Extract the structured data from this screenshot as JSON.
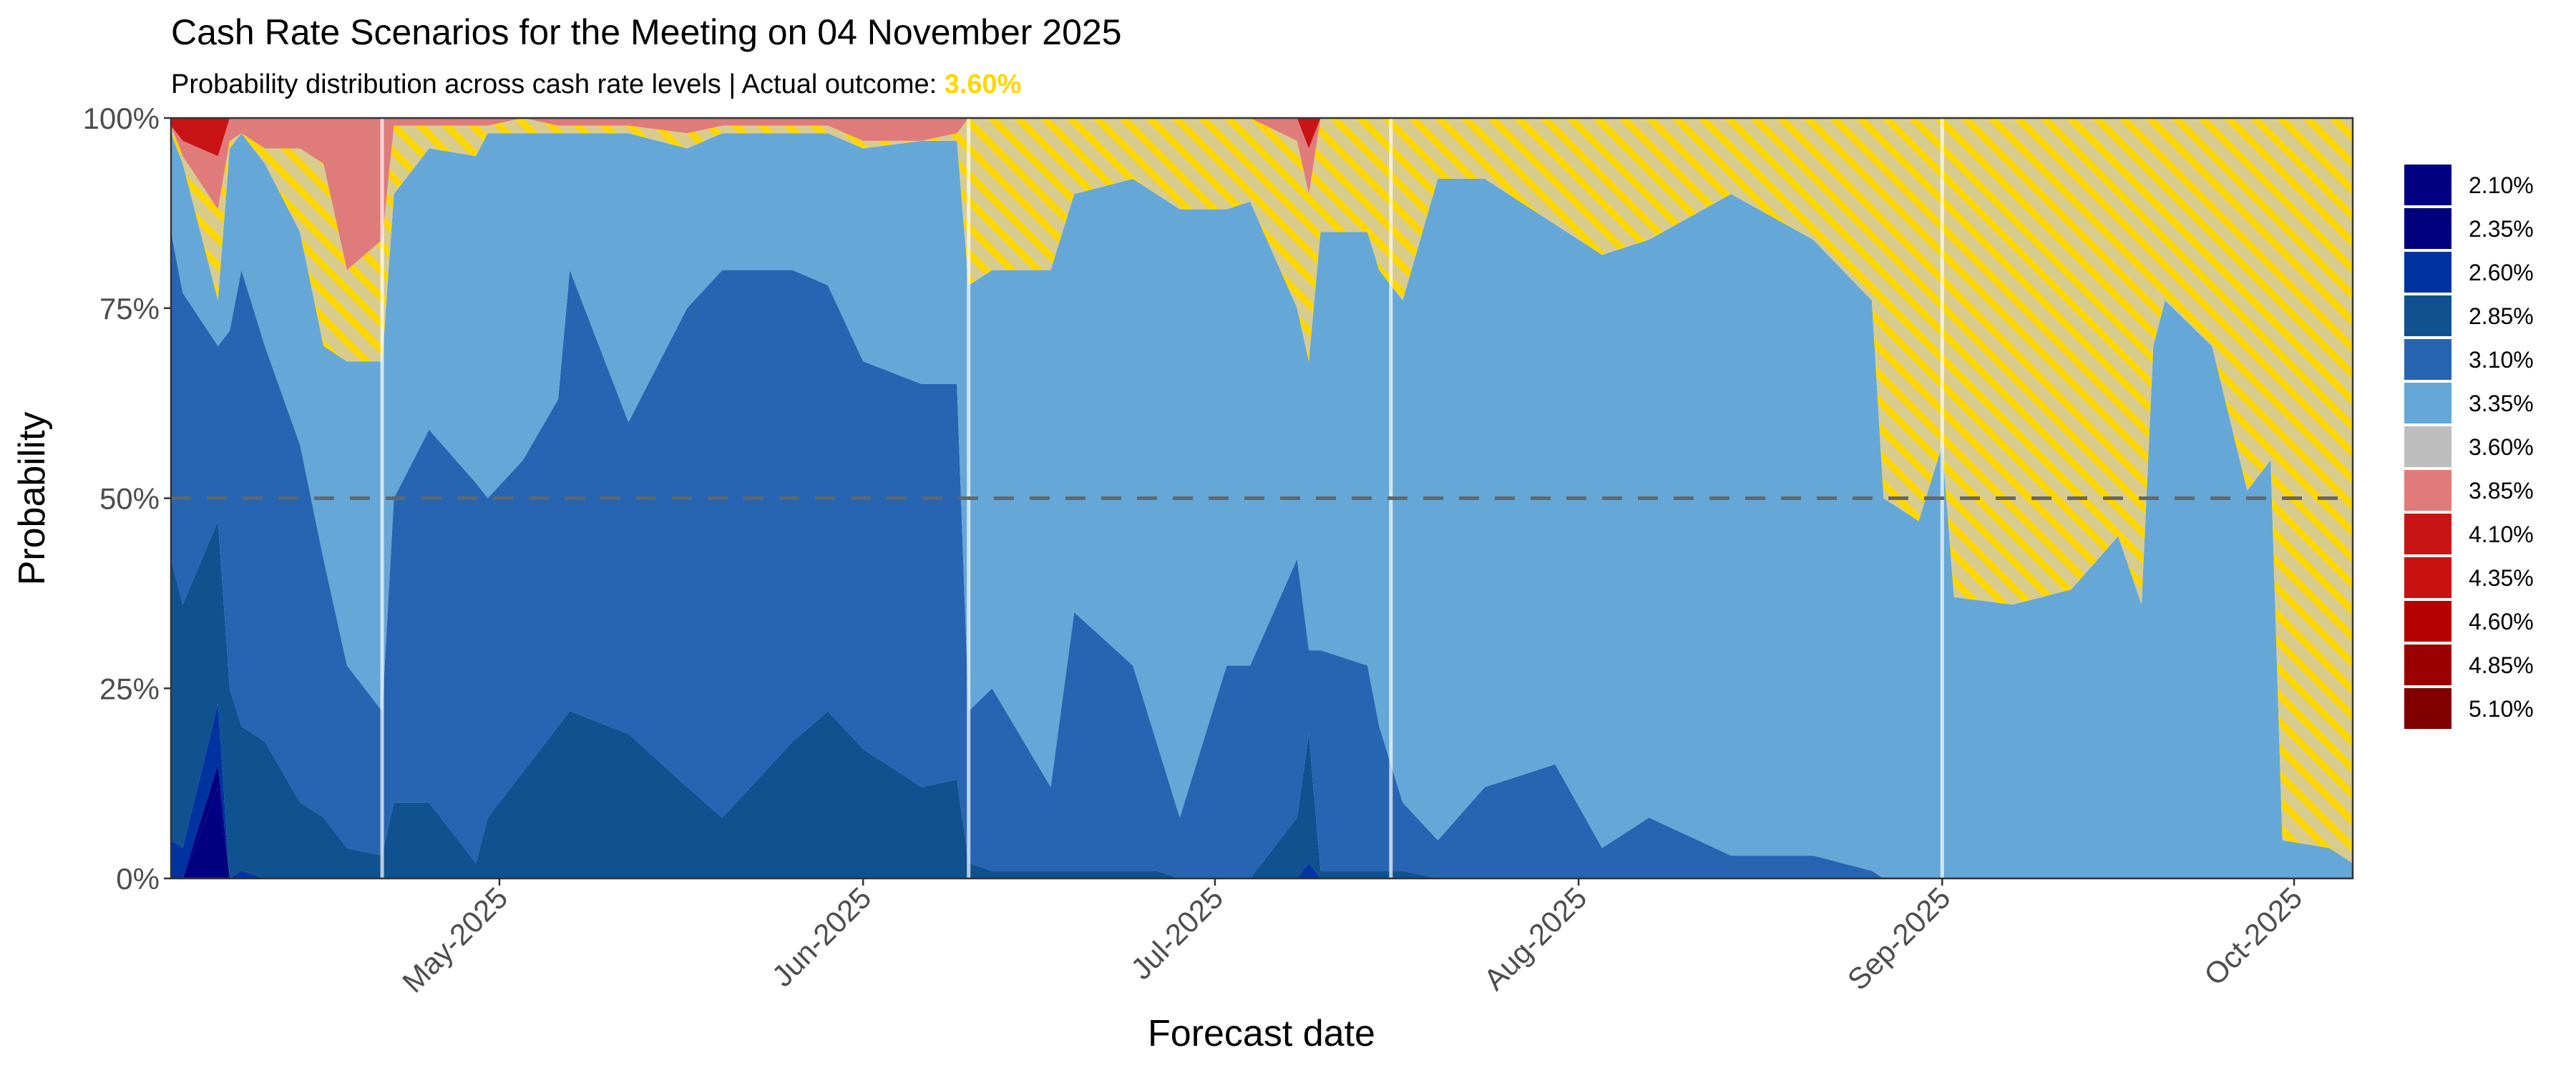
{
  "chart_data": {
    "type": "area",
    "stacked": true,
    "title": "Cash Rate Scenarios for the Meeting on 04 November 2025",
    "subtitle_prefix": "Probability distribution across cash rate levels | Actual outcome: ",
    "subtitle_highlight": "3.60%",
    "highlight_color": "#FFD700",
    "xlabel": "Forecast date",
    "ylabel": "Probability",
    "xlim": [
      "2025-04-03",
      "2025-10-06"
    ],
    "ylim": [
      0,
      100
    ],
    "y_ticks": [
      0,
      25,
      50,
      75,
      100
    ],
    "y_tick_labels": [
      "0%",
      "25%",
      "50%",
      "75%",
      "100%"
    ],
    "x_ticks": [
      "2025-05-01",
      "2025-06-01",
      "2025-07-01",
      "2025-08-01",
      "2025-09-01",
      "2025-10-01"
    ],
    "x_tick_labels": [
      "May-2025",
      "Jun-2025",
      "Jul-2025",
      "Aug-2025",
      "Sep-2025",
      "Oct-2025"
    ],
    "reference_line": {
      "y": 50,
      "style": "dashed",
      "color": "#666666"
    },
    "vertical_markers": [
      "2025-04-21",
      "2025-06-10",
      "2025-07-16",
      "2025-09-01"
    ],
    "legend_position": "right",
    "grid": false,
    "actual_outcome_series": "3.60%",
    "dates": [
      "2025-04-03",
      "2025-04-04",
      "2025-04-07",
      "2025-04-08",
      "2025-04-09",
      "2025-04-11",
      "2025-04-14",
      "2025-04-16",
      "2025-04-18",
      "2025-04-21",
      "2025-04-22",
      "2025-04-25",
      "2025-04-29",
      "2025-04-30",
      "2025-05-03",
      "2025-05-06",
      "2025-05-07",
      "2025-05-12",
      "2025-05-17",
      "2025-05-20",
      "2025-05-26",
      "2025-05-29",
      "2025-06-01",
      "2025-06-06",
      "2025-06-09",
      "2025-06-10",
      "2025-06-12",
      "2025-06-17",
      "2025-06-19",
      "2025-06-24",
      "2025-06-26",
      "2025-06-28",
      "2025-07-02",
      "2025-07-04",
      "2025-07-08",
      "2025-07-09",
      "2025-07-10",
      "2025-07-14",
      "2025-07-15",
      "2025-07-17",
      "2025-07-20",
      "2025-07-24",
      "2025-07-30",
      "2025-08-03",
      "2025-08-07",
      "2025-08-14",
      "2025-08-21",
      "2025-08-26",
      "2025-08-27",
      "2025-08-30",
      "2025-09-01",
      "2025-09-02",
      "2025-09-07",
      "2025-09-12",
      "2025-09-16",
      "2025-09-18",
      "2025-09-19",
      "2025-09-20",
      "2025-09-24",
      "2025-09-27",
      "2025-09-29",
      "2025-09-30",
      "2025-10-04",
      "2025-10-06"
    ],
    "series": [
      {
        "name": "2.10%",
        "color": "#000080",
        "values": [
          0,
          0,
          12,
          0,
          0,
          0,
          0,
          0,
          0,
          0,
          0,
          0,
          0,
          0,
          0,
          0,
          0,
          0,
          0,
          0,
          0,
          0,
          0,
          0,
          0,
          0,
          0,
          0,
          0,
          0,
          0,
          0,
          0,
          0,
          0,
          0,
          0,
          0,
          0,
          0,
          0,
          0,
          0,
          0,
          0,
          0,
          0,
          0,
          0,
          0,
          0,
          0,
          0,
          0,
          0,
          0,
          0,
          0,
          0,
          0,
          0,
          0,
          0,
          0
        ]
      },
      {
        "name": "2.35%",
        "color": "#00007F",
        "values": [
          0,
          0,
          3,
          0,
          0,
          0,
          0,
          0,
          0,
          0,
          0,
          0,
          0,
          0,
          0,
          0,
          0,
          0,
          0,
          0,
          0,
          0,
          0,
          0,
          0,
          0,
          0,
          0,
          0,
          0,
          0,
          0,
          0,
          0,
          0,
          0,
          0,
          0,
          0,
          0,
          0,
          0,
          0,
          0,
          0,
          0,
          0,
          0,
          0,
          0,
          0,
          0,
          0,
          0,
          0,
          0,
          0,
          0,
          0,
          0,
          0,
          0,
          0,
          0
        ]
      },
      {
        "name": "2.60%",
        "color": "#0033A0",
        "values": [
          5,
          4,
          8,
          0,
          1,
          0,
          0,
          0,
          0,
          0,
          0,
          0,
          0,
          0,
          0,
          0,
          0,
          0,
          0,
          0,
          0,
          0,
          0,
          0,
          0,
          0,
          0,
          0,
          0,
          0,
          0,
          0,
          0,
          0,
          0,
          2,
          0,
          0,
          0,
          0,
          0,
          0,
          0,
          0,
          0,
          0,
          0,
          0,
          0,
          0,
          0,
          0,
          0,
          0,
          0,
          0,
          0,
          0,
          0,
          0,
          0,
          0,
          0,
          0
        ]
      },
      {
        "name": "2.85%",
        "color": "#0F528F",
        "values": [
          37,
          32,
          24,
          25,
          19,
          18,
          10,
          8,
          4,
          3,
          10,
          10,
          2,
          8,
          14,
          20,
          22,
          19,
          12,
          8,
          18,
          22,
          17,
          12,
          13,
          2,
          1,
          1,
          1,
          1,
          1,
          0,
          0,
          0,
          8,
          17,
          1,
          1,
          1,
          1,
          0,
          0,
          0,
          0,
          0,
          0,
          0,
          0,
          0,
          0,
          0,
          0,
          0,
          0,
          0,
          0,
          0,
          0,
          0,
          0,
          0,
          0,
          0,
          0
        ]
      },
      {
        "name": "3.10%",
        "color": "#2765B2",
        "values": [
          43,
          41,
          23,
          47,
          60,
          52,
          47,
          34,
          24,
          19,
          40,
          49,
          50,
          42,
          41,
          43,
          58,
          41,
          63,
          72,
          62,
          56,
          51,
          53,
          52,
          20,
          24,
          11,
          34,
          27,
          17,
          8,
          28,
          28,
          34,
          11,
          29,
          27,
          19,
          9,
          5,
          12,
          15,
          4,
          8,
          3,
          3,
          1,
          0,
          0,
          0,
          0,
          0,
          0,
          0,
          0,
          0,
          0,
          0,
          0,
          0,
          0,
          0,
          0
        ]
      },
      {
        "name": "3.35%",
        "color": "#65A7D6",
        "values": [
          13,
          17,
          6,
          24,
          18,
          24,
          28,
          28,
          40,
          46,
          40,
          37,
          43,
          48,
          43,
          35,
          18,
          38,
          21,
          18,
          18,
          20,
          28,
          32,
          32,
          56,
          55,
          68,
          55,
          64,
          72,
          80,
          60,
          61,
          33,
          38,
          55,
          57,
          60,
          66,
          87,
          80,
          71,
          78,
          76,
          87,
          81,
          75,
          50,
          47,
          57,
          37,
          36,
          38,
          45,
          36,
          70,
          76,
          70,
          51,
          55,
          5,
          4,
          2
        ]
      },
      {
        "name": "3.60%",
        "color": "#BEBEBE",
        "values": [
          1,
          1,
          12,
          1,
          0,
          2,
          11,
          24,
          12,
          16,
          9,
          3,
          4,
          1,
          2,
          1,
          1,
          1,
          2,
          1,
          1,
          1,
          1,
          0,
          1,
          22,
          20,
          20,
          10,
          8,
          10,
          12,
          12,
          11,
          22,
          22,
          15,
          15,
          20,
          24,
          8,
          8,
          14,
          18,
          16,
          10,
          16,
          24,
          50,
          53,
          43,
          63,
          64,
          62,
          55,
          64,
          30,
          24,
          30,
          49,
          45,
          95,
          96,
          98
        ]
      },
      {
        "name": "3.85%",
        "color": "#E07B7B",
        "values": [
          0,
          2,
          7,
          3,
          2,
          4,
          4,
          6,
          20,
          16,
          1,
          1,
          1,
          1,
          0,
          1,
          1,
          1,
          2,
          1,
          1,
          1,
          3,
          3,
          2,
          0,
          0,
          0,
          0,
          0,
          0,
          0,
          0,
          0,
          3,
          6,
          0,
          0,
          0,
          0,
          0,
          0,
          0,
          0,
          0,
          0,
          0,
          0,
          0,
          0,
          0,
          0,
          0,
          0,
          0,
          0,
          0,
          0,
          0,
          0,
          0,
          0,
          0,
          0
        ]
      },
      {
        "name": "4.10%",
        "color": "#C81414",
        "values": [
          1,
          3,
          5,
          0,
          0,
          0,
          0,
          0,
          0,
          0,
          0,
          0,
          0,
          0,
          0,
          0,
          0,
          0,
          0,
          0,
          0,
          0,
          0,
          0,
          0,
          0,
          0,
          0,
          0,
          0,
          0,
          0,
          0,
          0,
          0,
          4,
          0,
          0,
          0,
          0,
          0,
          0,
          0,
          0,
          0,
          0,
          0,
          0,
          0,
          0,
          0,
          0,
          0,
          0,
          0,
          0,
          0,
          0,
          0,
          0,
          0,
          0,
          0,
          0
        ]
      },
      {
        "name": "4.35%",
        "color": "#C81212",
        "values": [
          0,
          0,
          0,
          0,
          0,
          0,
          0,
          0,
          0,
          0,
          0,
          0,
          0,
          0,
          0,
          0,
          0,
          0,
          0,
          0,
          0,
          0,
          0,
          0,
          0,
          0,
          0,
          0,
          0,
          0,
          0,
          0,
          0,
          0,
          0,
          0,
          0,
          0,
          0,
          0,
          0,
          0,
          0,
          0,
          0,
          0,
          0,
          0,
          0,
          0,
          0,
          0,
          0,
          0,
          0,
          0,
          0,
          0,
          0,
          0,
          0,
          0,
          0,
          0
        ]
      },
      {
        "name": "4.60%",
        "color": "#B40000",
        "values": [
          0,
          0,
          0,
          0,
          0,
          0,
          0,
          0,
          0,
          0,
          0,
          0,
          0,
          0,
          0,
          0,
          0,
          0,
          0,
          0,
          0,
          0,
          0,
          0,
          0,
          0,
          0,
          0,
          0,
          0,
          0,
          0,
          0,
          0,
          0,
          0,
          0,
          0,
          0,
          0,
          0,
          0,
          0,
          0,
          0,
          0,
          0,
          0,
          0,
          0,
          0,
          0,
          0,
          0,
          0,
          0,
          0,
          0,
          0,
          0,
          0,
          0,
          0,
          0
        ]
      },
      {
        "name": "4.85%",
        "color": "#9B0000",
        "values": [
          0,
          0,
          0,
          0,
          0,
          0,
          0,
          0,
          0,
          0,
          0,
          0,
          0,
          0,
          0,
          0,
          0,
          0,
          0,
          0,
          0,
          0,
          0,
          0,
          0,
          0,
          0,
          0,
          0,
          0,
          0,
          0,
          0,
          0,
          0,
          0,
          0,
          0,
          0,
          0,
          0,
          0,
          0,
          0,
          0,
          0,
          0,
          0,
          0,
          0,
          0,
          0,
          0,
          0,
          0,
          0,
          0,
          0,
          0,
          0,
          0,
          0,
          0,
          0
        ]
      },
      {
        "name": "5.10%",
        "color": "#800000",
        "values": [
          0,
          0,
          0,
          0,
          0,
          0,
          0,
          0,
          0,
          0,
          0,
          0,
          0,
          0,
          0,
          0,
          0,
          0,
          0,
          0,
          0,
          0,
          0,
          0,
          0,
          0,
          0,
          0,
          0,
          0,
          0,
          0,
          0,
          0,
          0,
          0,
          0,
          0,
          0,
          0,
          0,
          0,
          0,
          0,
          0,
          0,
          0,
          0,
          0,
          0,
          0,
          0,
          0,
          0,
          0,
          0,
          0,
          0,
          0,
          0,
          0,
          0,
          0,
          0
        ]
      }
    ]
  }
}
